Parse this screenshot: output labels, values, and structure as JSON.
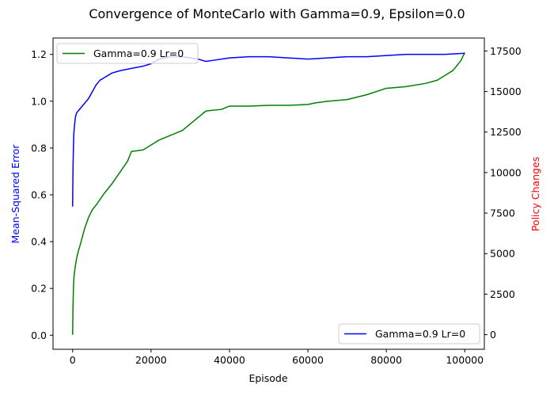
{
  "chart_data": {
    "type": "line",
    "title": "Convergence of MonteCarlo with Gamma=0.9, Epsilon=0.0",
    "xlabel": "Episode",
    "ylabel_left": "Mean-Squared Error",
    "ylabel_right": "Policy Changes",
    "xlim": [
      -5000,
      105000
    ],
    "ylim_left": [
      -0.06,
      1.27
    ],
    "ylim_right": [
      -900,
      18300
    ],
    "x_ticks": [
      "0",
      "20000",
      "40000",
      "60000",
      "80000",
      "100000"
    ],
    "x_tick_values": [
      0,
      20000,
      40000,
      60000,
      80000,
      100000
    ],
    "y_left_ticks": [
      "0.0",
      "0.2",
      "0.4",
      "0.6",
      "0.8",
      "1.0",
      "1.2"
    ],
    "y_left_tick_values": [
      0.0,
      0.2,
      0.4,
      0.6,
      0.8,
      1.0,
      1.2
    ],
    "y_right_ticks": [
      "0",
      "2500",
      "5000",
      "7500",
      "10000",
      "12500",
      "15000",
      "17500"
    ],
    "y_right_tick_values": [
      0,
      2500,
      5000,
      7500,
      10000,
      12500,
      15000,
      17500
    ],
    "grid": false,
    "series": [
      {
        "name": "Gamma=0.9 Lr=0",
        "axis": "left",
        "color": "#0000ff",
        "legend": "bottom-right",
        "x": [
          0,
          100,
          200,
          300,
          500,
          700,
          1000,
          1500,
          2000,
          3000,
          4000,
          5000,
          6000,
          7000,
          8000,
          10000,
          12000,
          15000,
          18000,
          20000,
          22000,
          25000,
          28000,
          30000,
          32000,
          34000,
          36000,
          40000,
          45000,
          50000,
          55000,
          60000,
          65000,
          70000,
          75000,
          80000,
          85000,
          90000,
          95000,
          100000
        ],
        "y": [
          0.55,
          0.72,
          0.8,
          0.86,
          0.9,
          0.93,
          0.95,
          0.96,
          0.97,
          0.99,
          1.01,
          1.04,
          1.07,
          1.09,
          1.1,
          1.12,
          1.13,
          1.14,
          1.15,
          1.16,
          1.18,
          1.19,
          1.19,
          1.185,
          1.18,
          1.17,
          1.175,
          1.185,
          1.19,
          1.19,
          1.185,
          1.18,
          1.185,
          1.19,
          1.19,
          1.195,
          1.2,
          1.2,
          1.2,
          1.205
        ]
      },
      {
        "name": "Gamma=0.9 Lr=0",
        "axis": "right",
        "color": "#008000",
        "legend": "top-left",
        "x": [
          0,
          50,
          100,
          200,
          300,
          500,
          800,
          1000,
          1500,
          2000,
          3000,
          4000,
          5000,
          6000,
          8000,
          10000,
          12000,
          14000,
          15000,
          18000,
          20000,
          22000,
          25000,
          28000,
          30000,
          32000,
          34000,
          38000,
          40000,
          45000,
          50000,
          55000,
          60000,
          62000,
          65000,
          70000,
          75000,
          80000,
          85000,
          90000,
          93000,
          95000,
          97000,
          99000,
          100000
        ],
        "y": [
          0,
          1000,
          1800,
          2800,
          3400,
          3900,
          4400,
          4700,
          5200,
          5600,
          6500,
          7200,
          7700,
          8000,
          8700,
          9300,
          10000,
          10700,
          11300,
          11400,
          11700,
          12000,
          12300,
          12600,
          13000,
          13400,
          13800,
          13900,
          14100,
          14100,
          14150,
          14150,
          14200,
          14300,
          14400,
          14500,
          14800,
          15200,
          15300,
          15500,
          15700,
          16000,
          16300,
          16900,
          17400
        ]
      }
    ]
  }
}
